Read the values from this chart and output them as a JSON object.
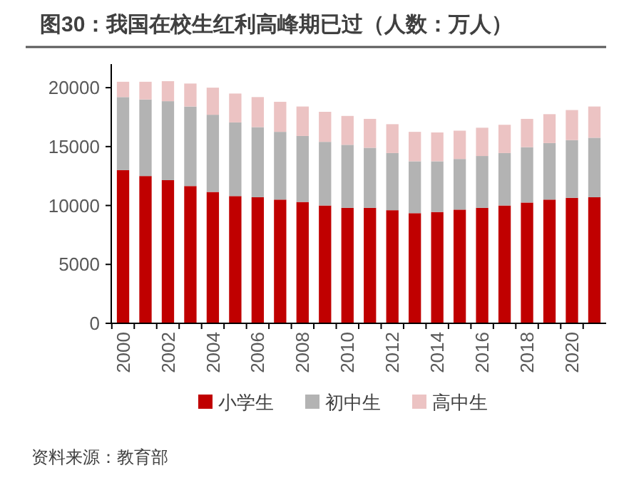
{
  "chart_data": {
    "type": "bar",
    "title": "图30：我国在校生红利高峰期已过（人数：万人）",
    "stacked": true,
    "categories": [
      "2000",
      null,
      "2002",
      null,
      "2004",
      null,
      "2006",
      null,
      "2008",
      null,
      "2010",
      null,
      "2012",
      null,
      "2014",
      null,
      "2016",
      null,
      "2018",
      null,
      "2020",
      null
    ],
    "series": [
      {
        "name": "小学生",
        "color": "#c00000",
        "values": [
          13000,
          12500,
          12150,
          11650,
          11150,
          10800,
          10700,
          10500,
          10300,
          10000,
          9800,
          9800,
          9600,
          9350,
          9450,
          9650,
          9800,
          10000,
          10250,
          10500,
          10650,
          10700
        ]
      },
      {
        "name": "初中生",
        "color": "#b3b3b3",
        "values": [
          6200,
          6500,
          6700,
          6750,
          6550,
          6250,
          5950,
          5750,
          5600,
          5400,
          5350,
          5100,
          4850,
          4400,
          4300,
          4300,
          4400,
          4450,
          4700,
          4800,
          4900,
          5050
        ]
      },
      {
        "name": "高中生",
        "color": "#ecc3c3",
        "values": [
          1300,
          1500,
          1700,
          1950,
          2300,
          2450,
          2550,
          2550,
          2500,
          2550,
          2450,
          2450,
          2450,
          2500,
          2450,
          2400,
          2400,
          2400,
          2400,
          2450,
          2550,
          2650
        ]
      }
    ],
    "ylim": [
      0,
      22000
    ],
    "yticks": [
      0,
      5000,
      10000,
      15000,
      20000
    ],
    "legend": "bottom",
    "grid": false,
    "annotations": [
      "资料来源：教育部"
    ]
  }
}
